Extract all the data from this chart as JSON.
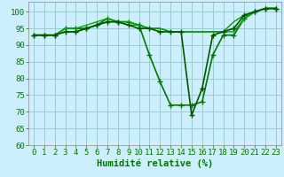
{
  "series": [
    {
      "x": [
        0,
        1,
        2,
        3,
        4,
        5,
        6,
        7,
        8,
        9,
        10,
        11,
        12,
        13,
        14,
        15,
        16,
        17,
        18,
        19,
        20,
        21,
        22,
        23
      ],
      "y": [
        93,
        93,
        93,
        95,
        95,
        95,
        96,
        98,
        97,
        97,
        96,
        87,
        79,
        72,
        72,
        72,
        73,
        87,
        93,
        93,
        98,
        100,
        101,
        101
      ],
      "color": "#007700",
      "linewidth": 1.2,
      "marker": "+",
      "markersize": 4
    },
    {
      "x": [
        0,
        1,
        2,
        3,
        4,
        5,
        6,
        7,
        8,
        9,
        10,
        11,
        12,
        13,
        14,
        15,
        16,
        17,
        18,
        19,
        20,
        21,
        22,
        23
      ],
      "y": [
        93,
        93,
        93,
        95,
        95,
        96,
        97,
        98,
        97,
        97,
        96,
        95,
        95,
        94,
        94,
        94,
        94,
        94,
        94,
        94,
        98,
        100,
        101,
        101
      ],
      "color": "#00aa00",
      "linewidth": 1.0,
      "marker": null,
      "markersize": 0
    },
    {
      "x": [
        0,
        1,
        2,
        3,
        4,
        5,
        6,
        7,
        8,
        9,
        10,
        11,
        12,
        13,
        14,
        15,
        16,
        17,
        18,
        19,
        20,
        21,
        22,
        23
      ],
      "y": [
        93,
        93,
        93,
        94,
        94,
        95,
        96,
        97,
        97,
        96,
        96,
        95,
        95,
        94,
        94,
        94,
        94,
        94,
        94,
        97,
        99,
        100,
        101,
        101
      ],
      "color": "#009900",
      "linewidth": 1.0,
      "marker": null,
      "markersize": 0
    },
    {
      "x": [
        0,
        1,
        2,
        3,
        4,
        5,
        6,
        7,
        8,
        9,
        10,
        11,
        12,
        13,
        14,
        15,
        16,
        17,
        18,
        19,
        20,
        21,
        22,
        23
      ],
      "y": [
        93,
        93,
        93,
        94,
        94,
        95,
        96,
        97,
        97,
        96,
        95,
        95,
        94,
        94,
        94,
        69,
        77,
        93,
        94,
        95,
        99,
        100,
        101,
        101
      ],
      "color": "#005500",
      "linewidth": 1.2,
      "marker": "+",
      "markersize": 4
    }
  ],
  "xlabel": "Humidité relative (%)",
  "xlim": [
    -0.5,
    23.5
  ],
  "ylim": [
    60,
    103
  ],
  "xticks": [
    0,
    1,
    2,
    3,
    4,
    5,
    6,
    7,
    8,
    9,
    10,
    11,
    12,
    13,
    14,
    15,
    16,
    17,
    18,
    19,
    20,
    21,
    22,
    23
  ],
  "yticks": [
    60,
    65,
    70,
    75,
    80,
    85,
    90,
    95,
    100
  ],
  "background_color": "#cceeff",
  "grid_color": "#99cccc",
  "tick_label_fontsize": 6.5,
  "xlabel_fontsize": 7.5,
  "xlabel_color": "#007700"
}
